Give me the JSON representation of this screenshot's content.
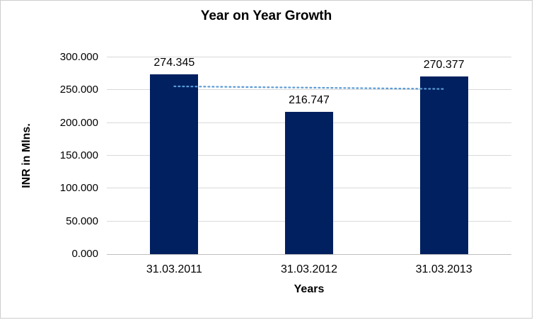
{
  "chart_data": {
    "type": "bar",
    "title": "Year on Year Growth",
    "xlabel": "Years",
    "ylabel": "INR in Mlns.",
    "categories": [
      "31.03.2011",
      "31.03.2012",
      "31.03.2013"
    ],
    "values": [
      274.345,
      216.747,
      270.377
    ],
    "data_labels": [
      "274.345",
      "216.747",
      "270.377"
    ],
    "ylim": [
      0,
      300
    ],
    "y_ticks": [
      0,
      50,
      100,
      150,
      200,
      250,
      300
    ],
    "y_tick_labels": [
      "0.000",
      "50.000",
      "100.000",
      "150.000",
      "200.000",
      "250.000",
      "300.000"
    ],
    "grid": true,
    "legend": "none",
    "bar_color": "#002060",
    "gridline_color": "#d9d9d9",
    "axis_color": "#bfbfbf",
    "trendline": {
      "type": "linear",
      "style": "dotted",
      "color": "#5b9bd5",
      "values": [
        255.8,
        253.8,
        251.8
      ]
    }
  }
}
